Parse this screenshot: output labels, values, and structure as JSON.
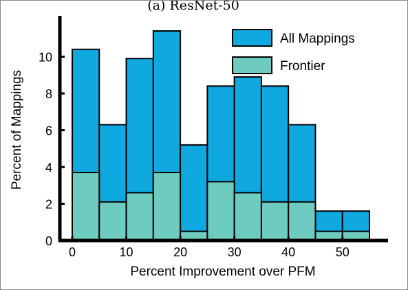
{
  "chart_data": {
    "type": "bar",
    "title": "(a) ResNet-50",
    "xlabel": "Percent Improvement over PFM",
    "ylabel": "Percent of Mappings",
    "bin_edges": [
      0,
      5,
      10,
      15,
      20,
      25,
      30,
      35,
      40,
      45,
      50,
      55
    ],
    "series": [
      {
        "name": "All Mappings",
        "color": "#0fa9e0",
        "values": [
          10.4,
          6.3,
          9.9,
          11.4,
          5.2,
          8.4,
          8.9,
          8.4,
          6.3,
          1.6,
          1.6
        ]
      },
      {
        "name": "Frontier",
        "color": "#6ecbbf",
        "values": [
          3.7,
          2.1,
          2.6,
          3.7,
          0.5,
          3.2,
          2.6,
          2.1,
          2.1,
          0.5,
          0.5
        ]
      }
    ],
    "xlim": [
      0,
      55
    ],
    "ylim": [
      0,
      12
    ],
    "xticks": [
      0,
      10,
      20,
      30,
      40,
      50
    ],
    "yticks": [
      0,
      2,
      4,
      6,
      8,
      10
    ],
    "legend_position": "top-right",
    "grid": false
  }
}
